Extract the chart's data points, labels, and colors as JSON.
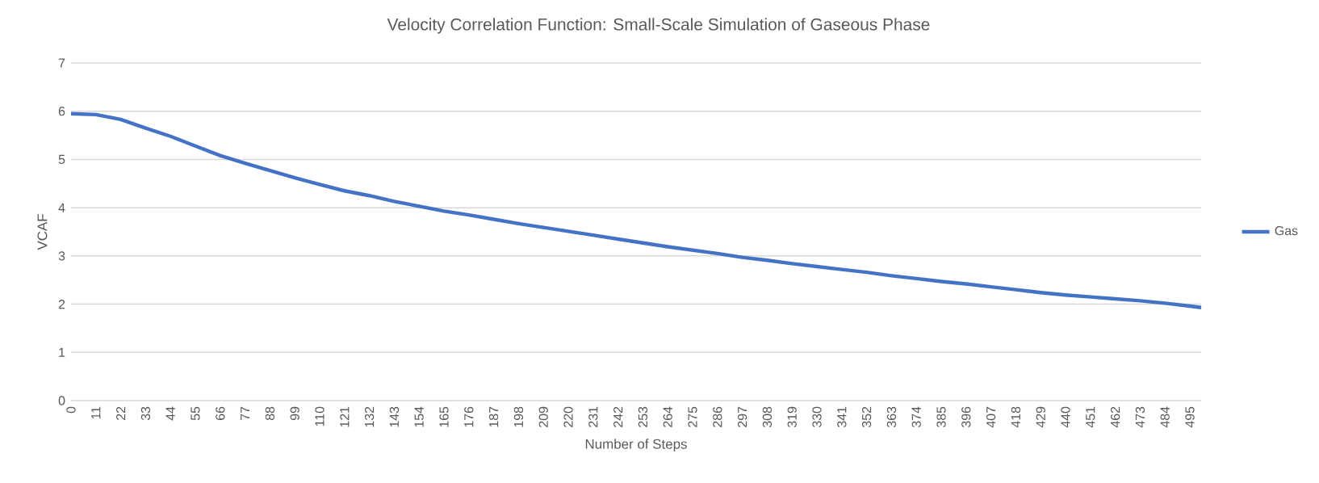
{
  "chart_data": {
    "type": "line",
    "title": "Velocity Correlation Function: Small-Scale Simulation of Gaseous Phase",
    "xlabel": "Number of Steps",
    "ylabel": "VCAF",
    "x": [
      0,
      11,
      22,
      33,
      44,
      55,
      66,
      77,
      88,
      99,
      110,
      121,
      132,
      143,
      154,
      165,
      176,
      187,
      198,
      209,
      220,
      231,
      242,
      253,
      264,
      275,
      286,
      297,
      308,
      319,
      330,
      341,
      352,
      363,
      374,
      385,
      396,
      407,
      418,
      429,
      440,
      451,
      462,
      473,
      484,
      495,
      500
    ],
    "series": [
      {
        "name": "Gas",
        "color": "#4472c4",
        "values": [
          5.95,
          5.93,
          5.83,
          5.65,
          5.48,
          5.28,
          5.08,
          4.92,
          4.77,
          4.62,
          4.48,
          4.35,
          4.25,
          4.13,
          4.03,
          3.93,
          3.85,
          3.76,
          3.67,
          3.59,
          3.51,
          3.43,
          3.35,
          3.27,
          3.19,
          3.12,
          3.05,
          2.97,
          2.91,
          2.84,
          2.78,
          2.72,
          2.66,
          2.59,
          2.53,
          2.47,
          2.42,
          2.36,
          2.3,
          2.24,
          2.19,
          2.15,
          2.11,
          2.07,
          2.02,
          1.96,
          1.93
        ]
      }
    ],
    "xlim": [
      0,
      500
    ],
    "xticks": [
      0,
      11,
      22,
      33,
      44,
      55,
      66,
      77,
      88,
      99,
      110,
      121,
      132,
      143,
      154,
      165,
      176,
      187,
      198,
      209,
      220,
      231,
      242,
      253,
      264,
      275,
      286,
      297,
      308,
      319,
      330,
      341,
      352,
      363,
      374,
      385,
      396,
      407,
      418,
      429,
      440,
      451,
      462,
      473,
      484,
      495
    ],
    "ylim": [
      0,
      7
    ],
    "yticks": [
      0,
      1,
      2,
      3,
      4,
      5,
      6,
      7
    ],
    "grid": "y",
    "legend": "right",
    "marker": "none",
    "line_style": "solid"
  }
}
